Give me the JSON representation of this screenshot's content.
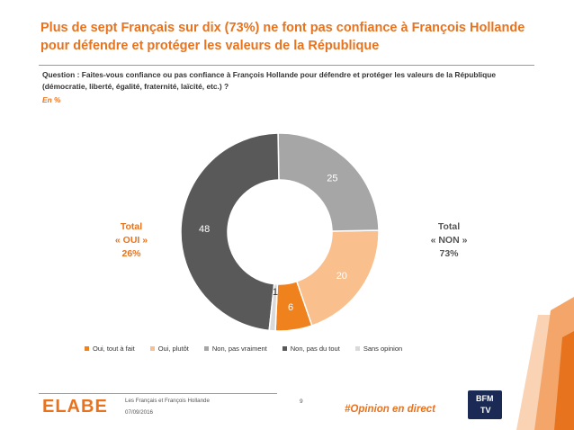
{
  "header": {
    "title": "Plus de sept Français sur dix (73%) ne font pas confiance à François Hollande pour défendre et protéger les valeurs de la République",
    "question": "Question : Faites-vous confiance ou pas confiance à François Hollande pour défendre et protéger les valeurs de la République (démocratie, liberté, égalité, fraternité, laïcité, etc.) ?",
    "unit": "En %"
  },
  "totals": {
    "oui": [
      "Total",
      "« OUI »",
      "26%"
    ],
    "non": [
      "Total",
      "« NON »",
      "73%"
    ]
  },
  "chart_data": {
    "type": "pie",
    "subtype": "donut",
    "categories": [
      "Oui, tout à fait",
      "Oui, plutôt",
      "Non, pas vraiment",
      "Non, pas du tout",
      "Sans opinion"
    ],
    "values": [
      6,
      20,
      25,
      48,
      1
    ],
    "colors": [
      "#f0821e",
      "#f9bf8c",
      "#a6a6a6",
      "#595959",
      "#d9d9d9"
    ],
    "label_colors": [
      "#ffffff",
      "#ffffff",
      "#ffffff",
      "#ffffff",
      "#333333"
    ],
    "legend_position": "bottom"
  },
  "footer": {
    "logo": "ELABE",
    "study": "Les Français et François Hollande",
    "date": "07/09/2016",
    "page": "9",
    "hashtag": "#Opinion en direct",
    "partner_logo_text_1": "BFM",
    "partner_logo_text_2": "TV"
  }
}
